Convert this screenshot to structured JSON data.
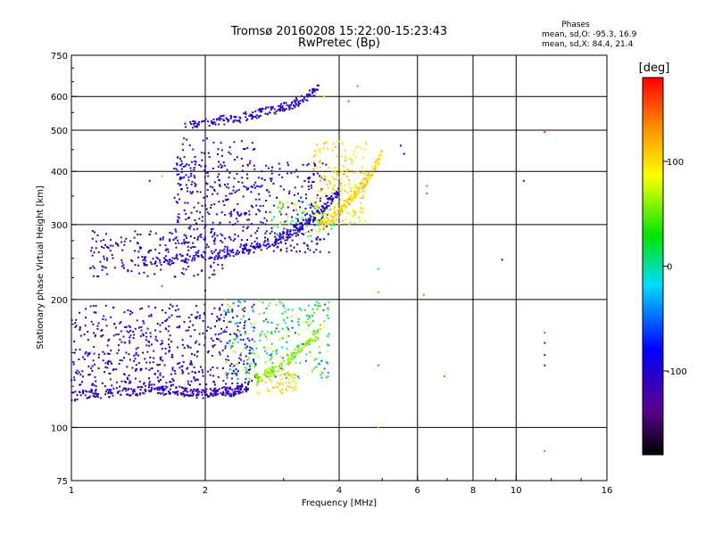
{
  "chart_data": {
    "type": "scatter",
    "title": "Tromsø 20160208 15:22:00-15:23:43",
    "subtitle": "RwPretec (Bp)",
    "xlabel": "Frequency [MHz]",
    "ylabel": "Stationary phase Virtual Height [km]",
    "x_scale": "log",
    "y_scale": "log",
    "xlim": [
      1,
      16
    ],
    "ylim": [
      75,
      750
    ],
    "x_ticks": [
      1,
      2,
      4,
      6,
      8,
      10,
      16
    ],
    "x_tick_labels": [
      "1",
      "2",
      "4",
      "6",
      "8",
      "10",
      "16"
    ],
    "y_ticks": [
      75,
      100,
      200,
      300,
      400,
      500,
      600,
      750
    ],
    "y_tick_labels": [
      "75",
      "100",
      "200",
      "300",
      "400",
      "500",
      "600",
      "750"
    ],
    "grid": true,
    "stats": {
      "title": "Phases",
      "line_o": "mean, sd,O: -95.3, 16.9",
      "line_x": "mean, sd,X:  84.4, 21.4"
    },
    "colorbar": {
      "label": "[deg]",
      "range": [
        -180,
        180
      ],
      "ticks": [
        -100,
        0,
        100
      ],
      "tick_labels": [
        "-100",
        "0",
        "100"
      ]
    },
    "traces": [
      {
        "name": "",
        "color_value": -110,
        "x": [
          1.0,
          1.1,
          1.2,
          1.3,
          1.4,
          1.5,
          1.6,
          1.7,
          1.8,
          1.9,
          2.0,
          2.1,
          2.2,
          2.3,
          2.4,
          2.5
        ],
        "y": [
          118,
          120,
          120,
          122,
          121,
          124,
          122,
          123,
          121,
          120,
          120,
          121,
          122,
          121,
          123,
          124
        ]
      },
      {
        "name": "",
        "color_value": -100,
        "x": [
          1.4,
          1.6,
          1.8,
          2.0,
          2.2,
          2.4,
          2.6,
          2.8,
          3.0,
          3.2,
          3.4,
          3.6,
          3.8,
          4.0
        ],
        "y": [
          245,
          248,
          250,
          253,
          256,
          260,
          265,
          272,
          280,
          292,
          305,
          320,
          340,
          360
        ]
      },
      {
        "name": "",
        "color_value": -105,
        "x": [
          1.8,
          2.0,
          2.2,
          2.4,
          2.6,
          2.8,
          3.0,
          3.2,
          3.4,
          3.6
        ],
        "y": [
          515,
          520,
          528,
          535,
          545,
          555,
          565,
          580,
          600,
          625
        ]
      },
      {
        "name": "",
        "color_value": 105,
        "x": [
          3.6,
          3.8,
          4.0,
          4.2,
          4.4,
          4.6,
          4.8,
          5.0
        ],
        "y": [
          295,
          305,
          320,
          340,
          360,
          380,
          410,
          440
        ]
      },
      {
        "name": "",
        "color_value": 60,
        "x": [
          2.6,
          2.8,
          3.0,
          3.2,
          3.4,
          3.6
        ],
        "y": [
          130,
          135,
          140,
          150,
          160,
          165
        ]
      }
    ],
    "clusters": [
      {
        "x_range": [
          1.0,
          2.6
        ],
        "y_range": [
          125,
          195
        ],
        "color_range": [
          -130,
          -80
        ],
        "count": 520
      },
      {
        "x_range": [
          2.2,
          3.8
        ],
        "y_range": [
          130,
          200
        ],
        "color_range": [
          -60,
          90
        ],
        "count": 280
      },
      {
        "x_range": [
          2.6,
          3.2
        ],
        "y_range": [
          120,
          135
        ],
        "color_range": [
          90,
          115
        ],
        "count": 60
      },
      {
        "x_range": [
          1.1,
          2.2
        ],
        "y_range": [
          225,
          290
        ],
        "color_range": [
          -130,
          -80
        ],
        "count": 170
      },
      {
        "x_range": [
          1.7,
          3.8
        ],
        "y_range": [
          255,
          420
        ],
        "color_range": [
          -130,
          -70
        ],
        "count": 440
      },
      {
        "x_range": [
          3.5,
          4.6
        ],
        "y_range": [
          300,
          470
        ],
        "color_range": [
          60,
          120
        ],
        "count": 190
      },
      {
        "x_range": [
          2.8,
          3.9
        ],
        "y_range": [
          280,
          340
        ],
        "color_range": [
          -20,
          110
        ],
        "count": 90
      },
      {
        "x_range": [
          1.7,
          2.6
        ],
        "y_range": [
          360,
          480
        ],
        "color_range": [
          -130,
          -70
        ],
        "count": 90
      }
    ],
    "points": [
      {
        "x": 1.5,
        "y": 380,
        "v": -100
      },
      {
        "x": 1.6,
        "y": 390,
        "v": 120
      },
      {
        "x": 1.6,
        "y": 215,
        "v": 160
      },
      {
        "x": 2.0,
        "y": 210,
        "v": -100
      },
      {
        "x": 4.2,
        "y": 585,
        "v": 160
      },
      {
        "x": 4.4,
        "y": 635,
        "v": 150
      },
      {
        "x": 4.9,
        "y": 236,
        "v": -10
      },
      {
        "x": 4.9,
        "y": 208,
        "v": 130
      },
      {
        "x": 4.9,
        "y": 140,
        "v": 150
      },
      {
        "x": 4.9,
        "y": 100,
        "v": 125
      },
      {
        "x": 6.2,
        "y": 205,
        "v": 150
      },
      {
        "x": 6.3,
        "y": 370,
        "v": -30
      },
      {
        "x": 6.3,
        "y": 355,
        "v": -40
      },
      {
        "x": 6.9,
        "y": 132,
        "v": 150
      },
      {
        "x": 9.3,
        "y": 248,
        "v": -120
      },
      {
        "x": 10.4,
        "y": 380,
        "v": -110
      },
      {
        "x": 11.6,
        "y": 495,
        "v": 170
      },
      {
        "x": 11.6,
        "y": 167,
        "v": -40
      },
      {
        "x": 11.6,
        "y": 158,
        "v": -110
      },
      {
        "x": 11.6,
        "y": 148,
        "v": -120
      },
      {
        "x": 11.6,
        "y": 140,
        "v": -130
      },
      {
        "x": 11.6,
        "y": 88,
        "v": -30
      },
      {
        "x": 5.5,
        "y": 460,
        "v": -100
      },
      {
        "x": 5.6,
        "y": 440,
        "v": -95
      },
      {
        "x": 3.55,
        "y": 610,
        "v": 70
      },
      {
        "x": 3.7,
        "y": 600,
        "v": 100
      }
    ]
  }
}
